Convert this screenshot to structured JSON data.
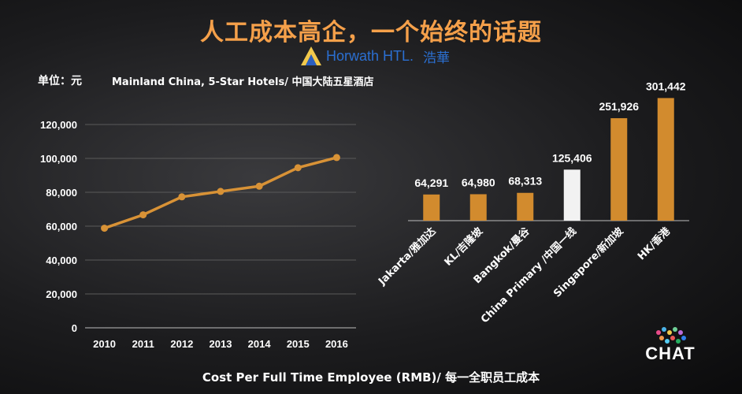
{
  "title": "人工成本高企，一个始终的话题",
  "logo": {
    "brand": "Horwath HTL.",
    "brand_cn": "浩華"
  },
  "unit_label": "单位：元",
  "subtitle": "Mainland China, 5-Star Hotels/ 中国大陆五星酒店",
  "footer": "Cost Per Full Time Employee (RMB)/ 每一全职员工成本",
  "chat_logo": {
    "text": "CHAT"
  },
  "colors": {
    "accent": "#F5A04A",
    "line": "#D89236",
    "bar": "#D28B2E",
    "bar_highlight": "#F2F2F2",
    "grid": "#5a5a5a"
  },
  "chart_data": [
    {
      "type": "line",
      "x": [
        "2010",
        "2011",
        "2012",
        "2013",
        "2014",
        "2015",
        "2016"
      ],
      "y": [
        58800,
        66700,
        77300,
        80500,
        83600,
        94500,
        100500
      ],
      "yticks": [
        "0",
        "20,000",
        "40,000",
        "60,000",
        "80,000",
        "100,000",
        "120,000"
      ],
      "ylim": [
        0,
        120000
      ],
      "grid": true
    },
    {
      "type": "bar",
      "categories": [
        "Jakarta/雅加达",
        "KL/吉隆坡",
        "Bangkok/曼谷",
        "China Primary /中国一线",
        "Singapore/新加坡",
        "HK/香港"
      ],
      "values": [
        64291,
        64980,
        68313,
        125406,
        251926,
        301442
      ],
      "value_labels": [
        "64,291",
        "64,980",
        "68,313",
        "125,406",
        "251,926",
        "301,442"
      ],
      "highlight_index": 3,
      "ylim": [
        0,
        310000
      ]
    }
  ]
}
